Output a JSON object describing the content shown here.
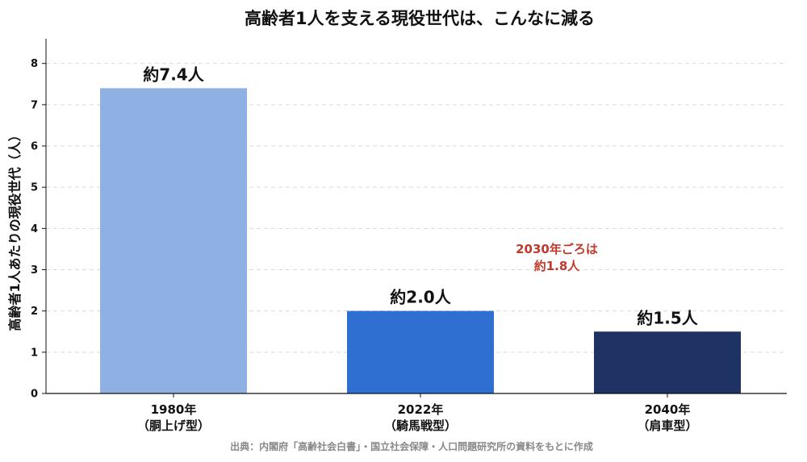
{
  "chart_data": {
    "type": "bar",
    "title": "高齢者1人を支える現役世代は、こんなに減る",
    "ylabel": "高齢者1人あたりの現役世代（人）",
    "xlabel": "",
    "ylim": [
      0,
      8.6
    ],
    "yticks": [
      0,
      1,
      2,
      3,
      4,
      5,
      6,
      7,
      8
    ],
    "grid": "y-dashed",
    "categories": [
      {
        "year": "1980年",
        "type": "（胴上げ型）"
      },
      {
        "year": "2022年",
        "type": "（騎馬戦型）"
      },
      {
        "year": "2040年",
        "type": "（肩車型）"
      }
    ],
    "values": [
      7.4,
      2.0,
      1.5
    ],
    "data_labels": [
      "約7.4人",
      "約2.0人",
      "約1.5人"
    ],
    "colors": [
      "#8fb0e3",
      "#2f6fd1",
      "#1e3264"
    ],
    "annotation": {
      "lines": [
        "2030年ごろは",
        "約1.8人"
      ],
      "color": "#c0392b"
    },
    "source": "出典：内閣府「高齢社会白書」・国立社会保障・人口問題研究所の資料をもとに作成"
  }
}
